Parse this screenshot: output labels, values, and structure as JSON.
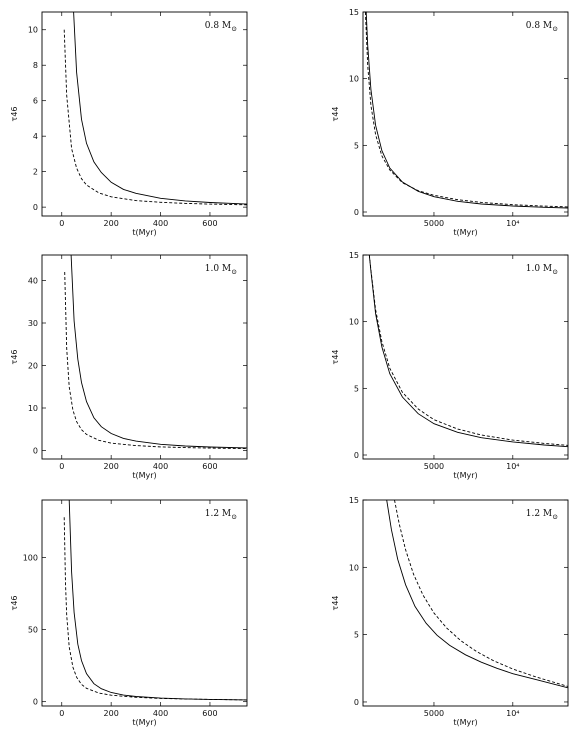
{
  "chart_data": [
    {
      "type": "line",
      "panel_label": "0.8 M",
      "xlabel": "t(Myr)",
      "ylabel": "τ46",
      "xlim": [
        -80,
        750
      ],
      "ylim": [
        -0.5,
        11
      ],
      "xticks": [
        {
          "v": 0,
          "t": "0"
        },
        {
          "v": 200,
          "t": "200"
        },
        {
          "v": 400,
          "t": "400"
        },
        {
          "v": 600,
          "t": "600"
        }
      ],
      "yticks": [
        {
          "v": 0,
          "t": "0"
        },
        {
          "v": 2,
          "t": "2"
        },
        {
          "v": 4,
          "t": "4"
        },
        {
          "v": 6,
          "t": "6"
        },
        {
          "v": 8,
          "t": "8"
        },
        {
          "v": 10,
          "t": "10"
        }
      ],
      "series": [
        {
          "style": "solid",
          "x": [
            48,
            60,
            80,
            100,
            130,
            160,
            200,
            250,
            300,
            400,
            500,
            600,
            750
          ],
          "y": [
            11.0,
            7.6,
            4.95,
            3.6,
            2.55,
            1.95,
            1.4,
            1.0,
            0.78,
            0.5,
            0.35,
            0.26,
            0.17
          ]
        },
        {
          "style": "dashed",
          "x": [
            10,
            20,
            40,
            60,
            80,
            100,
            150,
            200,
            300,
            400,
            500,
            600,
            750
          ],
          "y": [
            10.0,
            6.3,
            3.3,
            2.2,
            1.6,
            1.25,
            0.8,
            0.58,
            0.37,
            0.27,
            0.21,
            0.17,
            0.13
          ]
        }
      ]
    },
    {
      "type": "line",
      "panel_label": "0.8 M",
      "xlabel": "t(Myr)",
      "ylabel": "τ44",
      "xlim": [
        500,
        13500
      ],
      "ylim": [
        -0.3,
        15
      ],
      "xticks": [
        {
          "v": 5000,
          "t": "5000"
        },
        {
          "v": 10000,
          "t": "10⁴"
        }
      ],
      "yticks": [
        {
          "v": 0,
          "t": "0"
        },
        {
          "v": 5,
          "t": "5"
        },
        {
          "v": 10,
          "t": "10"
        },
        {
          "v": 15,
          "t": "15"
        }
      ],
      "series": [
        {
          "style": "solid",
          "x": [
            700,
            800,
            1000,
            1300,
            1700,
            2200,
            3000,
            4000,
            5000,
            6500,
            8000,
            10000,
            12000,
            13500
          ],
          "y": [
            15.0,
            12.5,
            9.2,
            6.5,
            4.6,
            3.3,
            2.25,
            1.55,
            1.15,
            0.8,
            0.6,
            0.45,
            0.35,
            0.3
          ]
        },
        {
          "style": "dashed",
          "x": [
            650,
            800,
            1000,
            1300,
            1700,
            2200,
            3000,
            4000,
            5000,
            6500,
            8000,
            10000,
            12000,
            13500
          ],
          "y": [
            15.0,
            11.0,
            8.0,
            5.8,
            4.2,
            3.15,
            2.2,
            1.6,
            1.25,
            0.92,
            0.72,
            0.55,
            0.44,
            0.38
          ]
        }
      ]
    },
    {
      "type": "line",
      "panel_label": "1.0 M",
      "xlabel": "t(Myr)",
      "ylabel": "τ46",
      "xlim": [
        -80,
        750
      ],
      "ylim": [
        -2,
        46
      ],
      "xticks": [
        {
          "v": 0,
          "t": "0"
        },
        {
          "v": 200,
          "t": "200"
        },
        {
          "v": 400,
          "t": "400"
        },
        {
          "v": 600,
          "t": "600"
        }
      ],
      "yticks": [
        {
          "v": 0,
          "t": "0"
        },
        {
          "v": 10,
          "t": "10"
        },
        {
          "v": 20,
          "t": "20"
        },
        {
          "v": 30,
          "t": "30"
        },
        {
          "v": 40,
          "t": "40"
        }
      ],
      "series": [
        {
          "style": "solid",
          "x": [
            38,
            50,
            65,
            80,
            100,
            130,
            160,
            200,
            250,
            300,
            400,
            500,
            600,
            750
          ],
          "y": [
            46.0,
            30.5,
            21.5,
            16.0,
            11.5,
            7.7,
            5.6,
            4.0,
            2.85,
            2.2,
            1.45,
            1.05,
            0.82,
            0.6
          ]
        },
        {
          "style": "dashed",
          "x": [
            12,
            20,
            30,
            45,
            60,
            80,
            100,
            150,
            200,
            300,
            400,
            500,
            600,
            750
          ],
          "y": [
            42.0,
            24.0,
            15.0,
            9.5,
            6.8,
            4.9,
            3.8,
            2.4,
            1.75,
            1.15,
            0.85,
            0.68,
            0.57,
            0.45
          ]
        }
      ]
    },
    {
      "type": "line",
      "panel_label": "1.0 M",
      "xlabel": "t(Myr)",
      "ylabel": "τ44",
      "xlim": [
        500,
        13500
      ],
      "ylim": [
        -0.3,
        15
      ],
      "xticks": [
        {
          "v": 5000,
          "t": "5000"
        },
        {
          "v": 10000,
          "t": "10⁴"
        }
      ],
      "yticks": [
        {
          "v": 0,
          "t": "0"
        },
        {
          "v": 5,
          "t": "5"
        },
        {
          "v": 10,
          "t": "10"
        },
        {
          "v": 15,
          "t": "15"
        }
      ],
      "series": [
        {
          "style": "solid",
          "x": [
            900,
            1000,
            1300,
            1700,
            2200,
            3000,
            4000,
            5000,
            6500,
            8000,
            10000,
            12000,
            13500
          ],
          "y": [
            15.0,
            13.8,
            10.6,
            8.1,
            6.1,
            4.35,
            3.1,
            2.35,
            1.7,
            1.3,
            0.98,
            0.75,
            0.62
          ]
        },
        {
          "style": "dashed",
          "x": [
            900,
            1000,
            1300,
            1700,
            2200,
            3000,
            4000,
            5000,
            6500,
            8000,
            10000,
            12000,
            13500
          ],
          "y": [
            15.0,
            13.9,
            10.9,
            8.5,
            6.5,
            4.7,
            3.45,
            2.65,
            1.95,
            1.5,
            1.12,
            0.87,
            0.72
          ]
        }
      ]
    },
    {
      "type": "line",
      "panel_label": "1.2 M",
      "xlabel": "t(Myr)",
      "ylabel": "τ46",
      "xlim": [
        -80,
        750
      ],
      "ylim": [
        -3,
        140
      ],
      "xticks": [
        {
          "v": 0,
          "t": "0"
        },
        {
          "v": 200,
          "t": "200"
        },
        {
          "v": 400,
          "t": "400"
        },
        {
          "v": 600,
          "t": "600"
        }
      ],
      "yticks": [
        {
          "v": 0,
          "t": "0"
        },
        {
          "v": 50,
          "t": "50"
        },
        {
          "v": 100,
          "t": "100"
        }
      ],
      "series": [
        {
          "style": "solid",
          "x": [
            30,
            40,
            50,
            65,
            80,
            100,
            130,
            160,
            200,
            250,
            300,
            400,
            500,
            600,
            750
          ],
          "y": [
            140,
            90,
            62,
            40,
            28.5,
            19.5,
            12.5,
            9.0,
            6.4,
            4.6,
            3.6,
            2.5,
            1.9,
            1.55,
            1.2
          ]
        },
        {
          "style": "dashed",
          "x": [
            10,
            15,
            20,
            30,
            45,
            60,
            80,
            100,
            150,
            200,
            300,
            400,
            500,
            600,
            750
          ],
          "y": [
            128,
            82,
            60,
            38,
            24,
            17,
            12,
            9.3,
            6.0,
            4.5,
            3.05,
            2.3,
            1.85,
            1.55,
            1.25
          ]
        }
      ]
    },
    {
      "type": "line",
      "panel_label": "1.2 M",
      "xlabel": "t(Myr)",
      "ylabel": "τ44",
      "xlim": [
        500,
        13500
      ],
      "ylim": [
        -0.3,
        15
      ],
      "xticks": [
        {
          "v": 5000,
          "t": "5000"
        },
        {
          "v": 10000,
          "t": "10⁴"
        }
      ],
      "yticks": [
        {
          "v": 0,
          "t": "0"
        },
        {
          "v": 5,
          "t": "5"
        },
        {
          "v": 10,
          "t": "10"
        },
        {
          "v": 15,
          "t": "15"
        }
      ],
      "series": [
        {
          "style": "solid",
          "x": [
            2000,
            2300,
            2700,
            3200,
            3800,
            4500,
            5200,
            6000,
            7000,
            8000,
            9000,
            10000,
            11500,
            13500
          ],
          "y": [
            15.0,
            12.8,
            10.6,
            8.7,
            7.1,
            5.85,
            4.95,
            4.2,
            3.5,
            2.95,
            2.5,
            2.1,
            1.65,
            1.05
          ]
        },
        {
          "style": "dashed",
          "x": [
            2500,
            2800,
            3200,
            3700,
            4300,
            5000,
            5800,
            6700,
            7700,
            8800,
            10000,
            11500,
            13500
          ],
          "y": [
            15.0,
            13.2,
            11.3,
            9.5,
            7.95,
            6.6,
            5.5,
            4.55,
            3.75,
            3.05,
            2.45,
            1.85,
            1.15
          ]
        }
      ]
    }
  ]
}
